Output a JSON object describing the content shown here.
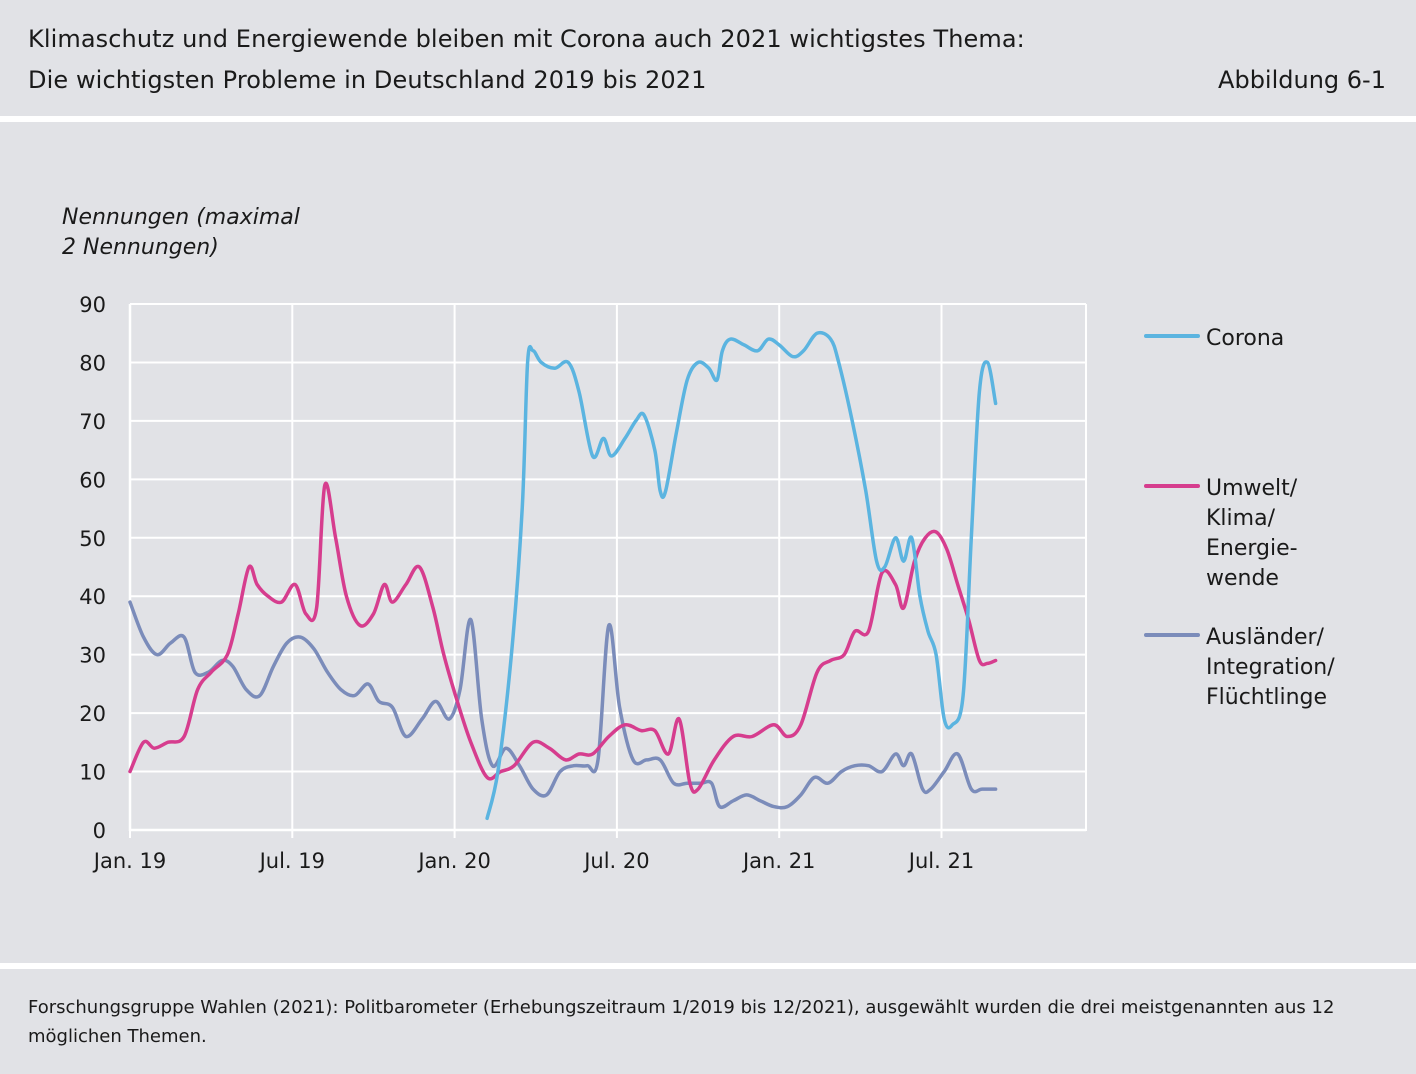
{
  "header": {
    "title_line1": "Klimaschutz und Energiewende bleiben mit Corona auch 2021 wichtigstes Thema:",
    "title_line2": "Die wichtigsten Probleme in Deutschland 2019 bis 2021",
    "figure_label": "Abbildung 6-1"
  },
  "footer": {
    "source": "Forschungsgruppe Wahlen (2021): Politbarometer (Erhebungszeitraum 1/2019 bis 12/2021), ausgewählt wurden die drei meistgenannten aus 12 möglichen Themen."
  },
  "chart_data": {
    "type": "line",
    "ylabel_lines": [
      "Nennungen (maximal",
      "2 Nennungen)"
    ],
    "ylim": [
      0,
      90
    ],
    "yticks": [
      0,
      10,
      20,
      30,
      40,
      50,
      60,
      70,
      80,
      90
    ],
    "xlim": [
      0,
      35.3
    ],
    "xticks": [
      {
        "value": 0,
        "label": "Jan. 19"
      },
      {
        "value": 6,
        "label": "Jul. 19"
      },
      {
        "value": 12,
        "label": "Jan. 20"
      },
      {
        "value": 18,
        "label": "Jul. 20"
      },
      {
        "value": 24,
        "label": "Jan. 21"
      },
      {
        "value": 30,
        "label": "Jul. 21"
      }
    ],
    "grid": true,
    "legend_position": "right",
    "series": [
      {
        "name": "Corona",
        "label_lines": [
          "Corona"
        ],
        "color": "#5bb4e0",
        "points": [
          [
            13.2,
            2
          ],
          [
            13.6,
            10
          ],
          [
            14.1,
            30
          ],
          [
            14.5,
            55
          ],
          [
            14.7,
            80
          ],
          [
            14.9,
            82
          ],
          [
            15.2,
            80
          ],
          [
            15.7,
            79
          ],
          [
            16.2,
            80
          ],
          [
            16.6,
            75
          ],
          [
            17.1,
            64
          ],
          [
            17.5,
            67
          ],
          [
            17.8,
            64
          ],
          [
            18.3,
            67
          ],
          [
            18.7,
            70
          ],
          [
            19.0,
            71
          ],
          [
            19.4,
            65
          ],
          [
            19.6,
            58
          ],
          [
            19.8,
            58
          ],
          [
            20.2,
            68
          ],
          [
            20.6,
            77
          ],
          [
            21.0,
            80
          ],
          [
            21.4,
            79
          ],
          [
            21.7,
            77
          ],
          [
            21.9,
            82
          ],
          [
            22.2,
            84
          ],
          [
            22.7,
            83
          ],
          [
            23.2,
            82
          ],
          [
            23.6,
            84
          ],
          [
            24.0,
            83
          ],
          [
            24.5,
            81
          ],
          [
            24.9,
            82
          ],
          [
            25.4,
            85
          ],
          [
            25.9,
            84
          ],
          [
            26.2,
            80
          ],
          [
            26.7,
            70
          ],
          [
            27.2,
            58
          ],
          [
            27.6,
            46
          ],
          [
            27.9,
            45
          ],
          [
            28.3,
            50
          ],
          [
            28.6,
            46
          ],
          [
            28.9,
            50
          ],
          [
            29.2,
            40
          ],
          [
            29.5,
            34
          ],
          [
            29.8,
            30
          ],
          [
            30.1,
            19
          ],
          [
            30.4,
            18
          ],
          [
            30.8,
            23
          ],
          [
            31.1,
            50
          ],
          [
            31.4,
            75
          ],
          [
            31.7,
            80
          ],
          [
            32.0,
            73
          ]
        ]
      },
      {
        "name": "Umwelt/Klima/Energiewende",
        "label_lines": [
          "Umwelt/",
          "Klima/",
          "Energie-",
          "wende"
        ],
        "color": "#d63d8e",
        "points": [
          [
            0,
            10
          ],
          [
            0.5,
            15
          ],
          [
            0.9,
            14
          ],
          [
            1.4,
            15
          ],
          [
            2.0,
            16
          ],
          [
            2.5,
            24
          ],
          [
            3.0,
            27
          ],
          [
            3.6,
            30
          ],
          [
            4.0,
            37
          ],
          [
            4.4,
            45
          ],
          [
            4.7,
            42
          ],
          [
            5.1,
            40
          ],
          [
            5.6,
            39
          ],
          [
            6.1,
            42
          ],
          [
            6.5,
            37
          ],
          [
            6.9,
            38
          ],
          [
            7.2,
            59
          ],
          [
            7.6,
            50
          ],
          [
            8.0,
            40
          ],
          [
            8.5,
            35
          ],
          [
            9.0,
            37
          ],
          [
            9.4,
            42
          ],
          [
            9.7,
            39
          ],
          [
            10.2,
            42
          ],
          [
            10.7,
            45
          ],
          [
            11.2,
            38
          ],
          [
            11.6,
            30
          ],
          [
            12.1,
            22
          ],
          [
            12.6,
            15
          ],
          [
            13.2,
            9
          ],
          [
            13.7,
            10
          ],
          [
            14.2,
            11
          ],
          [
            14.9,
            15
          ],
          [
            15.5,
            14
          ],
          [
            16.1,
            12
          ],
          [
            16.6,
            13
          ],
          [
            17.1,
            13
          ],
          [
            17.7,
            16
          ],
          [
            18.3,
            18
          ],
          [
            18.9,
            17
          ],
          [
            19.4,
            17
          ],
          [
            19.9,
            13
          ],
          [
            20.3,
            19
          ],
          [
            20.7,
            8
          ],
          [
            21.0,
            7
          ],
          [
            21.6,
            12
          ],
          [
            22.3,
            16
          ],
          [
            23.0,
            16
          ],
          [
            23.8,
            18
          ],
          [
            24.3,
            16
          ],
          [
            24.8,
            18
          ],
          [
            25.4,
            27
          ],
          [
            25.9,
            29
          ],
          [
            26.4,
            30
          ],
          [
            26.8,
            34
          ],
          [
            27.3,
            34
          ],
          [
            27.8,
            44
          ],
          [
            28.3,
            42
          ],
          [
            28.6,
            38
          ],
          [
            29.0,
            46
          ],
          [
            29.4,
            50
          ],
          [
            29.8,
            51
          ],
          [
            30.2,
            48
          ],
          [
            30.6,
            42
          ],
          [
            31.0,
            36
          ],
          [
            31.4,
            29
          ],
          [
            31.7,
            28.5
          ],
          [
            32.0,
            29
          ]
        ]
      },
      {
        "name": "Ausländer/Integration/Flüchtlinge",
        "label_lines": [
          "Ausländer/",
          "Integration/",
          "Flüchtlinge"
        ],
        "color": "#7b8cba",
        "points": [
          [
            0,
            39
          ],
          [
            0.5,
            33
          ],
          [
            1.0,
            30
          ],
          [
            1.5,
            32
          ],
          [
            2.0,
            33
          ],
          [
            2.4,
            27
          ],
          [
            2.9,
            27
          ],
          [
            3.4,
            29
          ],
          [
            3.8,
            28
          ],
          [
            4.3,
            24
          ],
          [
            4.8,
            23
          ],
          [
            5.3,
            28
          ],
          [
            5.8,
            32
          ],
          [
            6.3,
            33
          ],
          [
            6.8,
            31
          ],
          [
            7.3,
            27
          ],
          [
            7.8,
            24
          ],
          [
            8.3,
            23
          ],
          [
            8.8,
            25
          ],
          [
            9.2,
            22
          ],
          [
            9.7,
            21
          ],
          [
            10.2,
            16
          ],
          [
            10.8,
            19
          ],
          [
            11.3,
            22
          ],
          [
            11.8,
            19
          ],
          [
            12.2,
            24
          ],
          [
            12.6,
            36
          ],
          [
            13.0,
            19
          ],
          [
            13.4,
            11
          ],
          [
            13.9,
            14
          ],
          [
            14.4,
            11
          ],
          [
            14.9,
            7
          ],
          [
            15.4,
            6
          ],
          [
            15.9,
            10
          ],
          [
            16.4,
            11
          ],
          [
            16.9,
            11
          ],
          [
            17.3,
            12
          ],
          [
            17.7,
            35
          ],
          [
            18.1,
            21
          ],
          [
            18.6,
            12
          ],
          [
            19.1,
            12
          ],
          [
            19.6,
            12
          ],
          [
            20.1,
            8
          ],
          [
            20.6,
            8
          ],
          [
            21.1,
            8
          ],
          [
            21.5,
            8
          ],
          [
            21.8,
            4
          ],
          [
            22.3,
            5
          ],
          [
            22.8,
            6
          ],
          [
            23.3,
            5
          ],
          [
            23.8,
            4
          ],
          [
            24.3,
            4
          ],
          [
            24.8,
            6
          ],
          [
            25.3,
            9
          ],
          [
            25.8,
            8
          ],
          [
            26.3,
            10
          ],
          [
            26.8,
            11
          ],
          [
            27.3,
            11
          ],
          [
            27.8,
            10
          ],
          [
            28.3,
            13
          ],
          [
            28.6,
            11
          ],
          [
            28.9,
            13
          ],
          [
            29.3,
            7
          ],
          [
            29.6,
            7
          ],
          [
            30.1,
            10
          ],
          [
            30.6,
            13
          ],
          [
            31.1,
            7
          ],
          [
            31.5,
            7
          ],
          [
            32.0,
            7
          ]
        ]
      }
    ]
  }
}
